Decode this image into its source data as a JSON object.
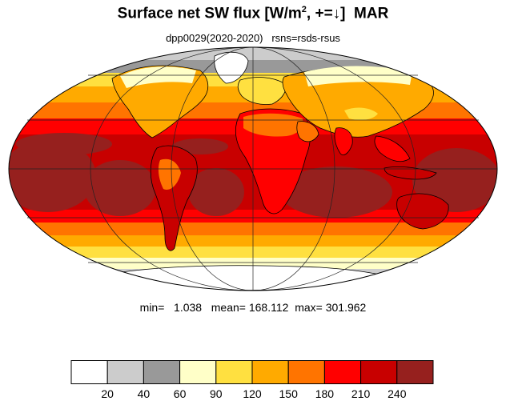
{
  "header": {
    "title_main": "Surface net SW flux [W/m",
    "title_sup": "2",
    "title_tail": ", +=↓]  MAR",
    "subtitle": "dpp0029(2020-2020)   rsns=rsds-rsus"
  },
  "stats": {
    "text": "min=   1.038   mean= 168.112  max= 301.962"
  },
  "colorbar": {
    "colors": [
      "#ffffff",
      "#cccccc",
      "#999999",
      "#ffffc8",
      "#ffe040",
      "#ffaa00",
      "#ff7400",
      "#ff0000",
      "#c80000",
      "#96201e"
    ],
    "labels": [
      "20",
      "40",
      "60",
      "90",
      "120",
      "150",
      "180",
      "210",
      "240"
    ]
  },
  "map": {
    "projection": "Mollweide",
    "land_outline_color": "#000000",
    "graticule_color": "#222222"
  }
}
